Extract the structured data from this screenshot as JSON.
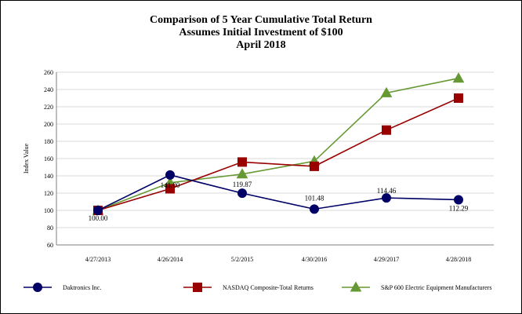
{
  "chart_data": {
    "type": "line",
    "title_lines": [
      "Comparison of 5 Year Cumulative Total Return",
      "Assumes Initial Investment of $100",
      "April 2018"
    ],
    "ylabel": "Index Value",
    "xlabel": "",
    "ylim": [
      60,
      260
    ],
    "ytick_step": 20,
    "grid": true,
    "legend_position": "bottom",
    "categories": [
      "4/27/2013",
      "4/26/2014",
      "5/2/2015",
      "4/30/2016",
      "4/29/2017",
      "4/28/2018"
    ],
    "series": [
      {
        "name": "Daktronics Inc.",
        "color": "#000066",
        "marker": "circle",
        "values": [
          100.0,
          141.0,
          119.87,
          101.48,
          114.46,
          112.29
        ],
        "labels": [
          "100.00",
          "141.00",
          "119.87",
          "101.48",
          "114.46",
          "112.29"
        ]
      },
      {
        "name": "NASDAQ Composite-Total Returns",
        "color": "#990000",
        "marker": "square",
        "values": [
          100,
          125,
          156,
          151,
          193,
          230
        ]
      },
      {
        "name": "S&P 600 Electric Equipment Manufacturers",
        "color": "#669933",
        "marker": "triangle",
        "values": [
          100,
          132,
          142,
          157,
          236,
          253
        ]
      }
    ]
  }
}
